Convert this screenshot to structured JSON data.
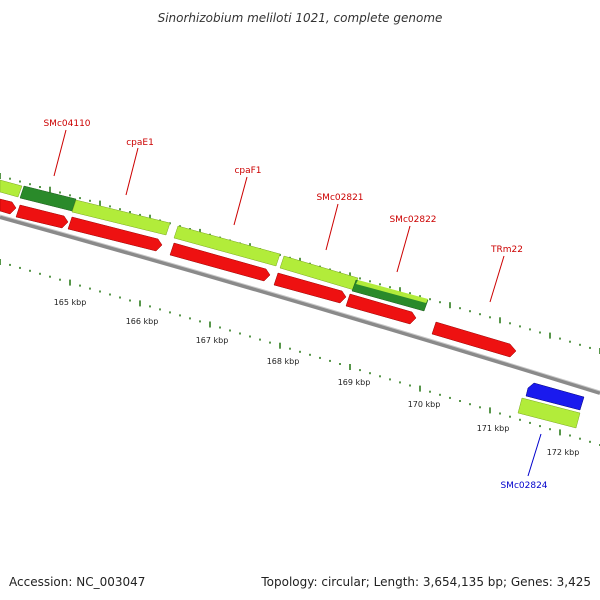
{
  "title": "Sinorhizobium meliloti 1021, complete genome",
  "footer": {
    "accession": "Accession: NC_003047",
    "summary": "Topology: circular; Length: 3,654,135 bp; Genes: 3,425"
  },
  "colors": {
    "backbone": "#8a8a8a",
    "tick": "#2e7d1e",
    "label_forward": "#cc0000",
    "label_reverse": "#0000cc",
    "light_green": "#b2ec3a",
    "dark_green": "#2a8a2a",
    "red": "#ee1111",
    "blue": "#1a1aee"
  },
  "scale": {
    "labels": [
      {
        "text": "165 kbp"
      },
      {
        "text": "166 kbp"
      },
      {
        "text": "167 kbp"
      },
      {
        "text": "168 kbp"
      },
      {
        "text": "169 kbp"
      },
      {
        "text": "170 kbp"
      },
      {
        "text": "171 kbp"
      },
      {
        "text": "172 kbp"
      }
    ]
  },
  "gene_labels": [
    {
      "name": "SMc04110",
      "color": "#cc0000"
    },
    {
      "name": "cpaE1",
      "color": "#cc0000"
    },
    {
      "name": "cpaF1",
      "color": "#cc0000"
    },
    {
      "name": "SMc02821",
      "color": "#cc0000"
    },
    {
      "name": "SMc02822",
      "color": "#cc0000"
    },
    {
      "name": "TRm22",
      "color": "#cc0000"
    },
    {
      "name": "SMc02824",
      "color": "#0000cc"
    }
  ]
}
